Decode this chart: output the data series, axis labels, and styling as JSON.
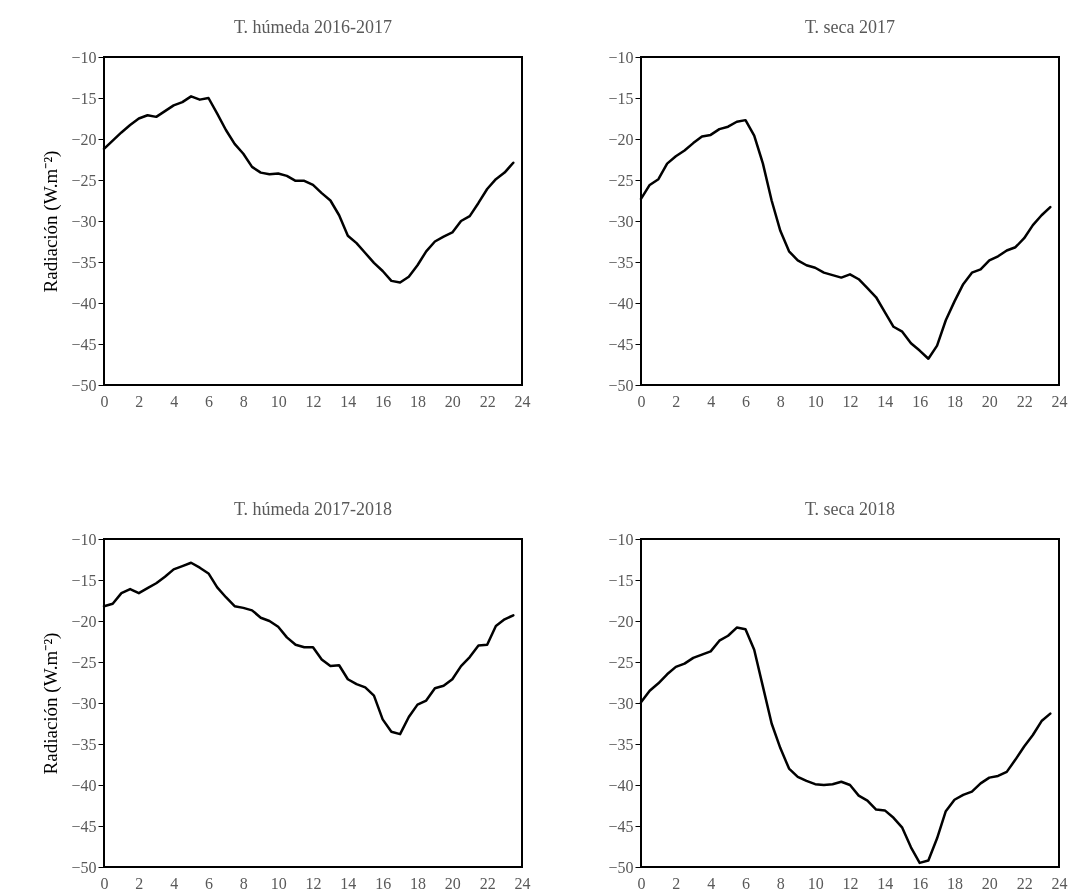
{
  "chart_data": [
    {
      "type": "line",
      "title": "T. húmeda 2016-2017",
      "ylabel": "Radiación (W.m⁻²)",
      "x": [
        0,
        0.5,
        1,
        1.5,
        2,
        2.5,
        3,
        3.5,
        4,
        4.5,
        5,
        5.5,
        6,
        6.5,
        7,
        7.5,
        8,
        8.5,
        9,
        9.5,
        10,
        10.5,
        11,
        11.5,
        12,
        12.5,
        13,
        13.5,
        14,
        14.5,
        15,
        15.5,
        16,
        16.5,
        17,
        17.5,
        18,
        18.5,
        19,
        19.5,
        20,
        20.5,
        21,
        21.5,
        22,
        22.5,
        23,
        23.5
      ],
      "series": [
        {
          "color": "#000000",
          "values": [
            -21.2,
            -20.2,
            -19.2,
            -18.3,
            -17.5,
            -17.1,
            -17.3,
            -16.6,
            -15.9,
            -15.5,
            -14.8,
            -15.2,
            -15.0,
            -16.9,
            -18.9,
            -20.6,
            -21.8,
            -23.4,
            -24.1,
            -24.3,
            -24.2,
            -24.5,
            -25.1,
            -25.1,
            -25.6,
            -26.6,
            -27.5,
            -29.3,
            -31.8,
            -32.7,
            -33.9,
            -35.1,
            -36.1,
            -37.3,
            -37.5,
            -36.8,
            -35.4,
            -33.7,
            -32.5,
            -31.9,
            -31.4,
            -30.0,
            -29.4,
            -27.8,
            -26.1,
            -24.9,
            -24.1,
            -22.9
          ]
        }
      ],
      "xlim": [
        0,
        24
      ],
      "xticks": [
        0,
        2,
        4,
        6,
        8,
        10,
        12,
        14,
        16,
        18,
        20,
        22,
        24
      ],
      "ylim": [
        -50,
        -10
      ],
      "yticks": [
        -50,
        -45,
        -40,
        -35,
        -30,
        -25,
        -20,
        -15,
        -10
      ],
      "grid": false,
      "marker": "none",
      "line_style": "solid"
    },
    {
      "type": "line",
      "title": "T. seca 2017",
      "x": [
        0,
        0.5,
        1,
        1.5,
        2,
        2.5,
        3,
        3.5,
        4,
        4.5,
        5,
        5.5,
        6,
        6.5,
        7,
        7.5,
        8,
        8.5,
        9,
        9.5,
        10,
        10.5,
        11,
        11.5,
        12,
        12.5,
        13,
        13.5,
        14,
        14.5,
        15,
        15.5,
        16,
        16.5,
        17,
        17.5,
        18,
        18.5,
        19,
        19.5,
        20,
        20.5,
        21,
        21.5,
        22,
        22.5,
        23,
        23.5
      ],
      "series": [
        {
          "color": "#000000",
          "values": [
            -27.3,
            -25.6,
            -24.9,
            -23.0,
            -22.1,
            -21.4,
            -20.5,
            -19.7,
            -19.5,
            -18.8,
            -18.5,
            -17.9,
            -17.7,
            -19.6,
            -23.0,
            -27.5,
            -31.2,
            -33.7,
            -34.8,
            -35.4,
            -35.7,
            -36.3,
            -36.6,
            -36.9,
            -36.5,
            -37.1,
            -38.2,
            -39.3,
            -41.1,
            -42.9,
            -43.5,
            -44.9,
            -45.8,
            -46.8,
            -45.2,
            -42.1,
            -39.8,
            -37.7,
            -36.3,
            -35.9,
            -34.8,
            -34.3,
            -33.6,
            -33.2,
            -32.1,
            -30.5,
            -29.3,
            -28.3
          ]
        }
      ],
      "xlim": [
        0,
        24
      ],
      "xticks": [
        0,
        2,
        4,
        6,
        8,
        10,
        12,
        14,
        16,
        18,
        20,
        22,
        24
      ],
      "ylim": [
        -50,
        -10
      ],
      "yticks": [
        -50,
        -45,
        -40,
        -35,
        -30,
        -25,
        -20,
        -15,
        -10
      ],
      "grid": false,
      "marker": "none",
      "line_style": "solid"
    },
    {
      "type": "line",
      "title": "T. húmeda 2017-2018",
      "ylabel": "Radiación (W.m⁻²)",
      "x": [
        0,
        0.5,
        1,
        1.5,
        2,
        2.5,
        3,
        3.5,
        4,
        4.5,
        5,
        5.5,
        6,
        6.5,
        7,
        7.5,
        8,
        8.5,
        9,
        9.5,
        10,
        10.5,
        11,
        11.5,
        12,
        12.5,
        13,
        13.5,
        14,
        14.5,
        15,
        15.5,
        16,
        16.5,
        17,
        17.5,
        18,
        18.5,
        19,
        19.5,
        20,
        20.5,
        21,
        21.5,
        22,
        22.5,
        23,
        23.5
      ],
      "series": [
        {
          "color": "#000000",
          "values": [
            -18.2,
            -17.9,
            -16.6,
            -16.1,
            -16.6,
            -16.0,
            -15.4,
            -14.6,
            -13.7,
            -13.3,
            -12.9,
            -13.5,
            -14.2,
            -15.9,
            -17.1,
            -18.2,
            -18.4,
            -18.7,
            -19.6,
            -20.0,
            -20.7,
            -22.0,
            -22.9,
            -23.2,
            -23.2,
            -24.7,
            -25.5,
            -25.4,
            -27.1,
            -27.7,
            -28.1,
            -29.1,
            -32.0,
            -33.5,
            -33.8,
            -31.7,
            -30.2,
            -29.7,
            -28.2,
            -27.9,
            -27.1,
            -25.5,
            -24.4,
            -23.0,
            -22.9,
            -20.6,
            -19.8,
            -19.3
          ]
        }
      ],
      "xlim": [
        0,
        24
      ],
      "xticks": [
        0,
        2,
        4,
        6,
        8,
        10,
        12,
        14,
        16,
        18,
        20,
        22,
        24
      ],
      "ylim": [
        -50,
        -10
      ],
      "yticks": [
        -50,
        -45,
        -40,
        -35,
        -30,
        -25,
        -20,
        -15,
        -10
      ],
      "grid": false,
      "marker": "none",
      "line_style": "solid"
    },
    {
      "type": "line",
      "title": "T. seca 2018",
      "x": [
        0,
        0.5,
        1,
        1.5,
        2,
        2.5,
        3,
        3.5,
        4,
        4.5,
        5,
        5.5,
        6,
        6.5,
        7,
        7.5,
        8,
        8.5,
        9,
        9.5,
        10,
        10.5,
        11,
        11.5,
        12,
        12.5,
        13,
        13.5,
        14,
        14.5,
        15,
        15.5,
        16,
        16.5,
        17,
        17.5,
        18,
        18.5,
        19,
        19.5,
        20,
        20.5,
        21,
        21.5,
        22,
        22.5,
        23,
        23.5
      ],
      "series": [
        {
          "color": "#000000",
          "values": [
            -29.9,
            -28.5,
            -27.6,
            -26.5,
            -25.6,
            -25.2,
            -24.5,
            -24.1,
            -23.7,
            -22.4,
            -21.8,
            -20.8,
            -21.0,
            -23.5,
            -28.0,
            -32.5,
            -35.5,
            -38.0,
            -39.0,
            -39.5,
            -39.9,
            -40.0,
            -39.9,
            -39.6,
            -40.0,
            -41.3,
            -41.9,
            -43.0,
            -43.1,
            -44.0,
            -45.2,
            -47.6,
            -49.5,
            -49.2,
            -46.5,
            -43.2,
            -41.8,
            -41.2,
            -40.8,
            -39.8,
            -39.1,
            -38.9,
            -38.4,
            -36.9,
            -35.3,
            -33.9,
            -32.2,
            -31.3
          ]
        }
      ],
      "xlim": [
        0,
        24
      ],
      "xticks": [
        0,
        2,
        4,
        6,
        8,
        10,
        12,
        14,
        16,
        18,
        20,
        22,
        24
      ],
      "ylim": [
        -50,
        -10
      ],
      "yticks": [
        -50,
        -45,
        -40,
        -35,
        -30,
        -25,
        -20,
        -15,
        -10
      ],
      "grid": false,
      "marker": "none",
      "line_style": "solid"
    }
  ]
}
